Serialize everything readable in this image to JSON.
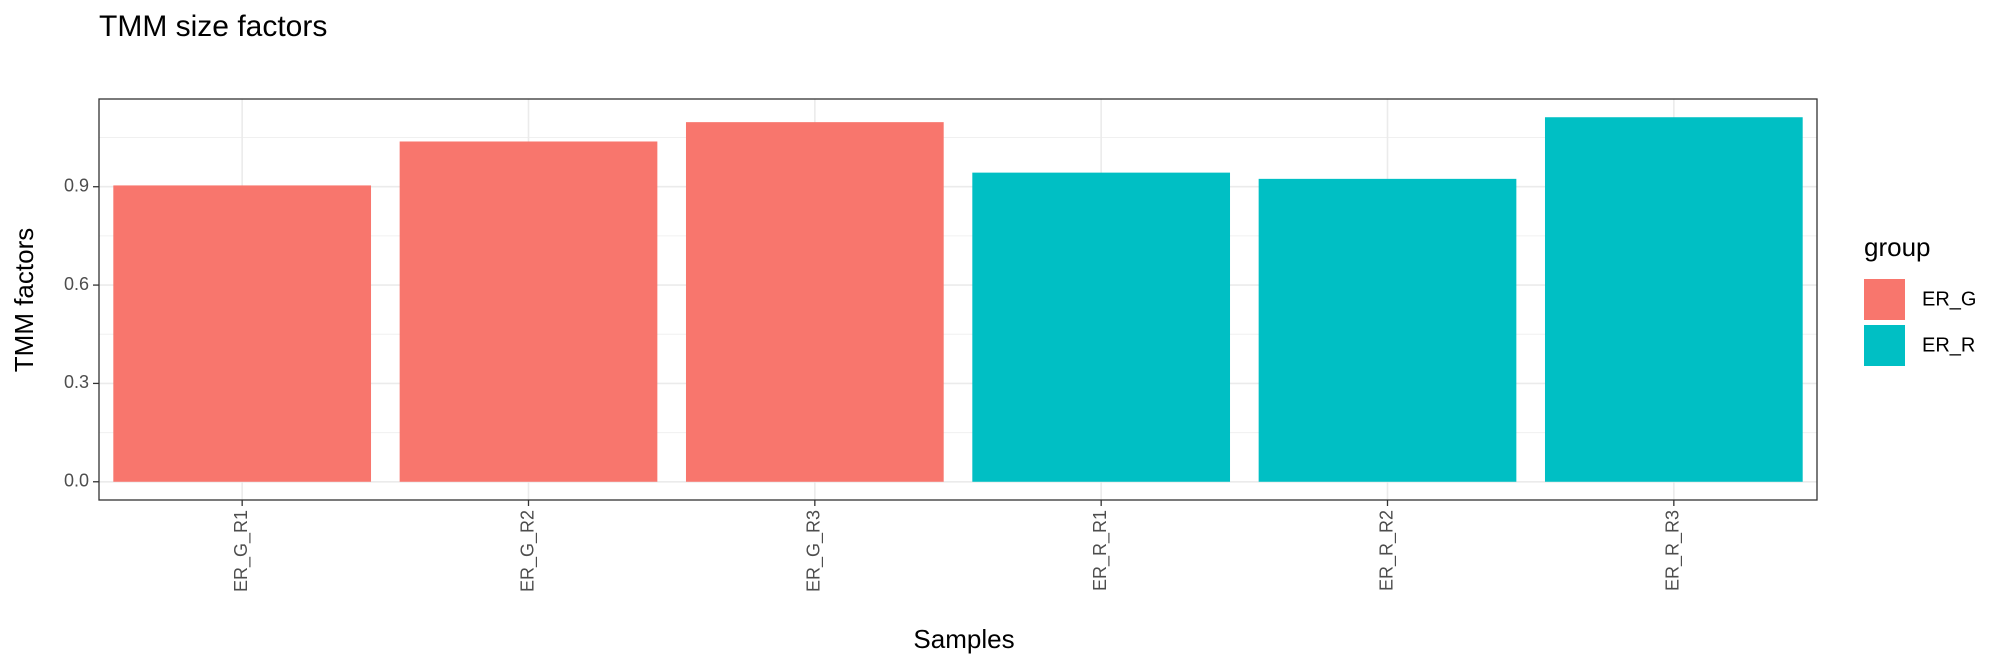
{
  "chart_data": {
    "type": "bar",
    "title": "TMM size factors",
    "x_label": "Samples",
    "y_label": "TMM factors",
    "categories": [
      "ER_G_R1",
      "ER_G_R2",
      "ER_G_R3",
      "ER_R_R1",
      "ER_R_R2",
      "ER_R_R3"
    ],
    "series": [
      {
        "name": "ER_G",
        "color": "#F8766D",
        "values": [
          0.904,
          1.038,
          1.097,
          null,
          null,
          null
        ]
      },
      {
        "name": "ER_R",
        "color": "#00BFC4",
        "values": [
          null,
          null,
          null,
          0.943,
          0.924,
          1.112
        ]
      }
    ],
    "legend_title": "group",
    "ylim": [
      -0.0556,
      1.1676
    ],
    "yticks": [
      {
        "value": 0,
        "label": "0.0"
      },
      0.3,
      0.6,
      0.9
    ],
    "grid": true
  }
}
